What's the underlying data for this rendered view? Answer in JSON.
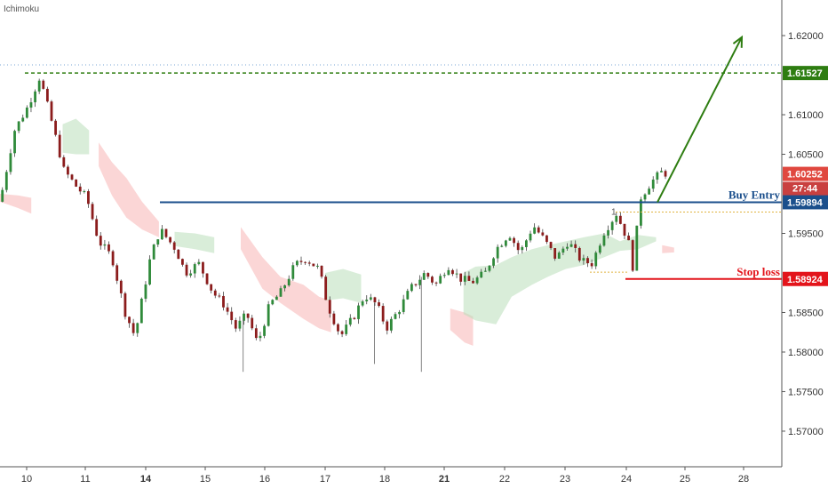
{
  "indicator": "Ichimoku",
  "chart_data": {
    "type": "candlestick",
    "ylim": [
      1.5655,
      1.6245
    ],
    "y_ticks": [
      "1.62000",
      "1.61000",
      "1.60500",
      "1.59500",
      "1.58500",
      "1.58000",
      "1.57500",
      "1.57000"
    ],
    "x_ticks": [
      {
        "label": "10",
        "bold": false
      },
      {
        "label": "11",
        "bold": false
      },
      {
        "label": "14",
        "bold": true
      },
      {
        "label": "15",
        "bold": false
      },
      {
        "label": "16",
        "bold": false
      },
      {
        "label": "17",
        "bold": false
      },
      {
        "label": "18",
        "bold": false
      },
      {
        "label": "21",
        "bold": true
      },
      {
        "label": "22",
        "bold": false
      },
      {
        "label": "23",
        "bold": false
      },
      {
        "label": "24",
        "bold": false
      },
      {
        "label": "25",
        "bold": false
      },
      {
        "label": "28",
        "bold": false
      }
    ],
    "price_path": [
      [
        0,
        1.599
      ],
      [
        1.2,
        1.608
      ],
      [
        2.3,
        1.611
      ],
      [
        3.3,
        1.6148
      ],
      [
        4.4,
        1.6085
      ],
      [
        5.3,
        1.603
      ],
      [
        6.3,
        1.601
      ],
      [
        7.2,
        1.5995
      ],
      [
        8.2,
        1.594
      ],
      [
        9.3,
        1.592
      ],
      [
        10.4,
        1.585
      ],
      [
        11.2,
        1.582
      ],
      [
        12.5,
        1.592
      ],
      [
        13.3,
        1.5955
      ],
      [
        14.6,
        1.593
      ],
      [
        15.4,
        1.59
      ],
      [
        16.5,
        1.5912
      ],
      [
        17.7,
        1.5875
      ],
      [
        18.6,
        1.586
      ],
      [
        19.6,
        1.583
      ],
      [
        20.5,
        1.5848
      ],
      [
        21.4,
        1.581
      ],
      [
        22.4,
        1.586
      ],
      [
        23.3,
        1.5875
      ],
      [
        24.5,
        1.591
      ],
      [
        25.4,
        1.5918
      ],
      [
        26.5,
        1.5905
      ],
      [
        27.2,
        1.586
      ],
      [
        28.3,
        1.582
      ],
      [
        29.4,
        1.5845
      ],
      [
        30.3,
        1.5872
      ],
      [
        31.3,
        1.586
      ],
      [
        32.1,
        1.583
      ],
      [
        33.2,
        1.5855
      ],
      [
        34.1,
        1.588
      ],
      [
        35.3,
        1.59
      ],
      [
        36.2,
        1.5885
      ],
      [
        37.2,
        1.591
      ],
      [
        38.2,
        1.5893
      ],
      [
        39.2,
        1.5888
      ],
      [
        40.3,
        1.59
      ],
      [
        41.2,
        1.593
      ],
      [
        42.3,
        1.595
      ],
      [
        43.2,
        1.5925
      ],
      [
        44.3,
        1.596
      ],
      [
        45.2,
        1.5942
      ],
      [
        46.2,
        1.5918
      ],
      [
        47.2,
        1.594
      ],
      [
        48.3,
        1.5915
      ],
      [
        49.2,
        1.5912
      ],
      [
        50.1,
        1.595
      ],
      [
        51.2,
        1.5975
      ],
      [
        52.2,
        1.594
      ],
      [
        52.5,
        1.59
      ],
      [
        53.2,
        1.5995
      ],
      [
        54.1,
        1.6015
      ],
      [
        55.0,
        1.6028
      ],
      [
        55.4,
        1.6025
      ]
    ],
    "cloud_bullish": [
      [
        5.2,
        1.6088,
        1.6052
      ],
      [
        6.3,
        1.6095,
        1.605
      ],
      [
        7.4,
        1.608,
        1.605
      ],
      [
        14.5,
        1.5952,
        1.5934
      ],
      [
        16.2,
        1.595,
        1.593
      ],
      [
        17.8,
        1.5945,
        1.5925
      ],
      [
        27.0,
        1.59,
        1.5865
      ],
      [
        28.5,
        1.5905,
        1.5868
      ],
      [
        30.0,
        1.5898,
        1.5862
      ],
      [
        38.5,
        1.59,
        1.5848
      ],
      [
        39.5,
        1.5908,
        1.584
      ],
      [
        41.2,
        1.591,
        1.5835
      ],
      [
        42.5,
        1.592,
        1.587
      ],
      [
        44.2,
        1.593,
        1.5885
      ],
      [
        45.5,
        1.5935,
        1.5895
      ],
      [
        47.0,
        1.594,
        1.5905
      ],
      [
        48.5,
        1.5945,
        1.591
      ],
      [
        50.2,
        1.595,
        1.592
      ],
      [
        51.5,
        1.594,
        1.5928
      ],
      [
        53.0,
        1.5948,
        1.593
      ],
      [
        54.5,
        1.5945,
        1.594
      ]
    ],
    "cloud_bearish": [
      [
        0.0,
        1.6,
        1.599
      ],
      [
        1.5,
        1.5998,
        1.5982
      ],
      [
        2.6,
        1.5995,
        1.5975
      ],
      [
        8.2,
        1.6065,
        1.6035
      ],
      [
        9.3,
        1.604,
        1.5998
      ],
      [
        10.5,
        1.602,
        1.597
      ],
      [
        11.8,
        1.599,
        1.5955
      ],
      [
        13.2,
        1.5965,
        1.5945
      ],
      [
        20.0,
        1.5958,
        1.593
      ],
      [
        21.8,
        1.592,
        1.588
      ],
      [
        23.3,
        1.5895,
        1.5862
      ],
      [
        25.2,
        1.5885,
        1.5842
      ],
      [
        26.5,
        1.587,
        1.583
      ],
      [
        27.5,
        1.5865,
        1.5825
      ],
      [
        37.4,
        1.5855,
        1.5828
      ],
      [
        38.6,
        1.585,
        1.5812
      ],
      [
        39.3,
        1.5845,
        1.5808
      ],
      [
        55.0,
        1.5935,
        1.5925
      ],
      [
        56.0,
        1.5932,
        1.5926
      ]
    ],
    "levels": [
      {
        "id": "target",
        "price": 1.61527,
        "label": "1.61527",
        "color": "#2e7d11",
        "style": "dashed",
        "annotation": ""
      },
      {
        "id": "buy-entry",
        "price": 1.59894,
        "label": "1.59894",
        "color": "#1b4f8c",
        "style": "solid",
        "annotation": "Buy Entry"
      },
      {
        "id": "stop-loss",
        "price": 1.58924,
        "label": "1.58924",
        "color": "#e3141b",
        "style": "solid",
        "annotation": "Stop loss"
      }
    ],
    "current_price": {
      "label": "1.60252",
      "color": "#e0483f",
      "countdown": "27:44",
      "countdown_color": "#c94040"
    },
    "ghost_label": "1",
    "top_dotted_level": 1.6163
  }
}
